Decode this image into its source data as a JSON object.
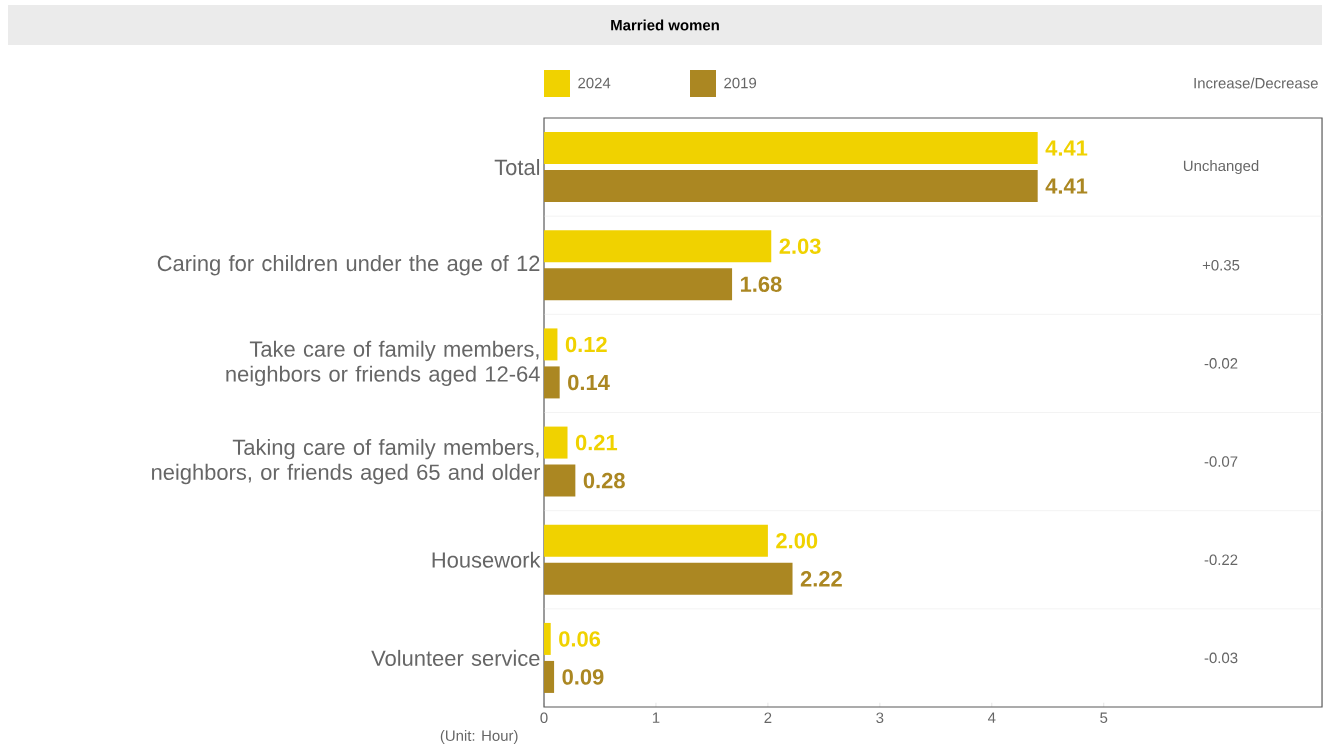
{
  "chart_data": {
    "type": "bar",
    "orientation": "horizontal",
    "title": "Married women",
    "categories": [
      "Total",
      "Caring for children under the age of 12",
      "Take care of family members, neighbors or friends aged 12-64",
      "Taking care of family members, neighbors, or friends aged 65 and older",
      "Housework",
      "Volunteer service"
    ],
    "series": [
      {
        "name": "2024",
        "color": "#f0d200",
        "values": [
          4.41,
          2.03,
          0.12,
          0.21,
          2.0,
          0.06
        ],
        "value_labels": [
          "4.41",
          "2.03",
          "0.12",
          "0.21",
          "2.00",
          "0.06"
        ]
      },
      {
        "name": "2019",
        "color": "#ab8722",
        "values": [
          4.41,
          1.68,
          0.14,
          0.28,
          2.22,
          0.09
        ],
        "value_labels": [
          "4.41",
          "1.68",
          "0.14",
          "0.28",
          "2.22",
          "0.09"
        ]
      }
    ],
    "xlim": [
      0,
      6.95
    ],
    "xticks": [
      0,
      1,
      2,
      3,
      4,
      5
    ],
    "legend": "top left",
    "grid": false,
    "annotations": [
      "Increase/Decrease",
      "Unchanged",
      "+0.35",
      "-0.02",
      "-0.07",
      "-0.22",
      "-0.03",
      "(Unit: Hour)"
    ]
  }
}
